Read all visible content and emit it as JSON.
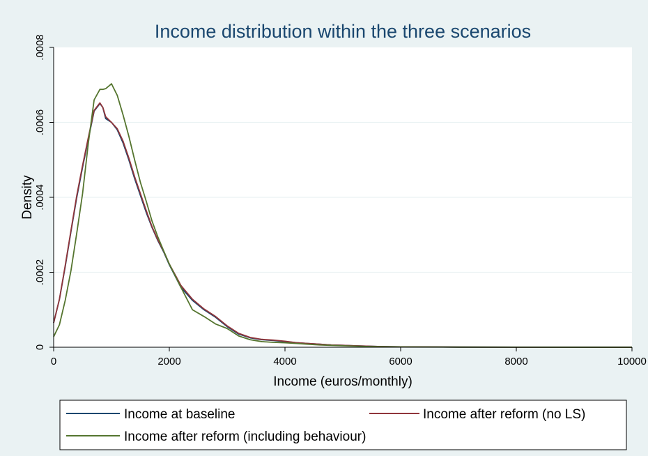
{
  "chart_data": {
    "type": "line",
    "title": "Income distribution within the three scenarios",
    "xlabel": "Income (euros/monthly)",
    "ylabel": "Density",
    "xlim": [
      0,
      10000
    ],
    "ylim": [
      0,
      0.0008
    ],
    "x_ticks": [
      0,
      2000,
      4000,
      6000,
      8000,
      10000
    ],
    "x_tick_labels": [
      "0",
      "2000",
      "4000",
      "6000",
      "8000",
      "10000"
    ],
    "y_ticks": [
      0,
      0.0002,
      0.0004,
      0.0006,
      0.0008
    ],
    "y_tick_labels": [
      "0",
      ".0002",
      ".0004",
      ".0006",
      ".0008"
    ],
    "grid": true,
    "legend_position": "bottom",
    "series": [
      {
        "name": "Income at baseline",
        "color": "#1a476f",
        "x": [
          0,
          100,
          200,
          300,
          400,
          500,
          600,
          700,
          800,
          850,
          900,
          1000,
          1100,
          1200,
          1300,
          1400,
          1500,
          1600,
          1700,
          1800,
          1900,
          2000,
          2200,
          2400,
          2600,
          2800,
          3000,
          3200,
          3400,
          3600,
          3800,
          4000,
          4200,
          4400,
          4600,
          4800,
          5000,
          5200,
          5400,
          5600,
          5800,
          6000,
          7000,
          8000,
          9000,
          10000
        ],
        "y": [
          6.5e-05,
          0.000128,
          0.000215,
          0.000309,
          0.0004,
          0.00048,
          0.000556,
          0.00063,
          0.00065,
          0.00064,
          0.00061,
          0.0006,
          0.00058,
          0.000545,
          0.0005,
          0.00045,
          0.000405,
          0.00036,
          0.00032,
          0.000285,
          0.000255,
          0.00022,
          0.00016,
          0.000125,
          0.0001,
          8e-05,
          5.5e-05,
          3.5e-05,
          2.5e-05,
          2e-05,
          1.8e-05,
          1.5e-05,
          1.2e-05,
          1e-05,
          8e-06,
          6e-06,
          5e-06,
          4e-06,
          3e-06,
          2e-06,
          1.5e-06,
          1e-06,
          5e-07,
          3e-07,
          2e-07,
          1e-07
        ]
      },
      {
        "name": "Income after reform (no LS)",
        "color": "#90353b",
        "x": [
          0,
          100,
          200,
          300,
          400,
          500,
          600,
          700,
          800,
          850,
          900,
          1000,
          1100,
          1200,
          1300,
          1400,
          1500,
          1600,
          1700,
          1800,
          1900,
          2000,
          2200,
          2400,
          2600,
          2800,
          3000,
          3200,
          3400,
          3600,
          3800,
          4000,
          4200,
          4400,
          4600,
          4800,
          5000,
          5200,
          5400,
          5600,
          5800,
          6000,
          7000,
          8000,
          9000,
          10000
        ],
        "y": [
          6.5e-05,
          0.000128,
          0.000218,
          0.000312,
          0.000405,
          0.000485,
          0.00056,
          0.000632,
          0.000652,
          0.00064,
          0.000615,
          0.0006,
          0.000583,
          0.00055,
          0.000505,
          0.000455,
          0.00041,
          0.000365,
          0.000322,
          0.000287,
          0.000257,
          0.000222,
          0.000165,
          0.000128,
          0.000102,
          8.2e-05,
          5.7e-05,
          3.7e-05,
          2.6e-05,
          2.1e-05,
          1.9e-05,
          1.6e-05,
          1.2e-05,
          1e-05,
          8e-06,
          6e-06,
          5e-06,
          4e-06,
          3e-06,
          2e-06,
          1.5e-06,
          1e-06,
          5e-07,
          3e-07,
          2e-07,
          1e-07
        ]
      },
      {
        "name": "Income after reform (including behaviour)",
        "color": "#55752f",
        "x": [
          0,
          100,
          200,
          300,
          400,
          500,
          600,
          700,
          800,
          850,
          900,
          1000,
          1100,
          1200,
          1300,
          1400,
          1500,
          1600,
          1700,
          1800,
          1900,
          2000,
          2200,
          2400,
          2600,
          2800,
          3000,
          3200,
          3400,
          3600,
          3800,
          4000,
          4200,
          4400,
          4600,
          4800,
          5000,
          5200,
          5400,
          5600,
          5800,
          6000,
          7000,
          8000,
          9000,
          10000
        ],
        "y": [
          2.8e-05,
          6e-05,
          0.000125,
          0.000205,
          0.000305,
          0.00041,
          0.000545,
          0.00066,
          0.000688,
          0.000688,
          0.00069,
          0.000703,
          0.000672,
          0.00062,
          0.000563,
          0.0005,
          0.00044,
          0.00039,
          0.000337,
          0.000295,
          0.000258,
          0.000222,
          0.00016,
          0.0001,
          8.2e-05,
          6.2e-05,
          5e-05,
          3e-05,
          2e-05,
          1.5e-05,
          1.3e-05,
          1.2e-05,
          1e-05,
          8e-06,
          6e-06,
          5e-06,
          4e-06,
          3e-06,
          2e-06,
          1.5e-06,
          1e-06,
          8e-07,
          4e-07,
          2e-07,
          1e-07,
          1e-07
        ]
      }
    ]
  }
}
